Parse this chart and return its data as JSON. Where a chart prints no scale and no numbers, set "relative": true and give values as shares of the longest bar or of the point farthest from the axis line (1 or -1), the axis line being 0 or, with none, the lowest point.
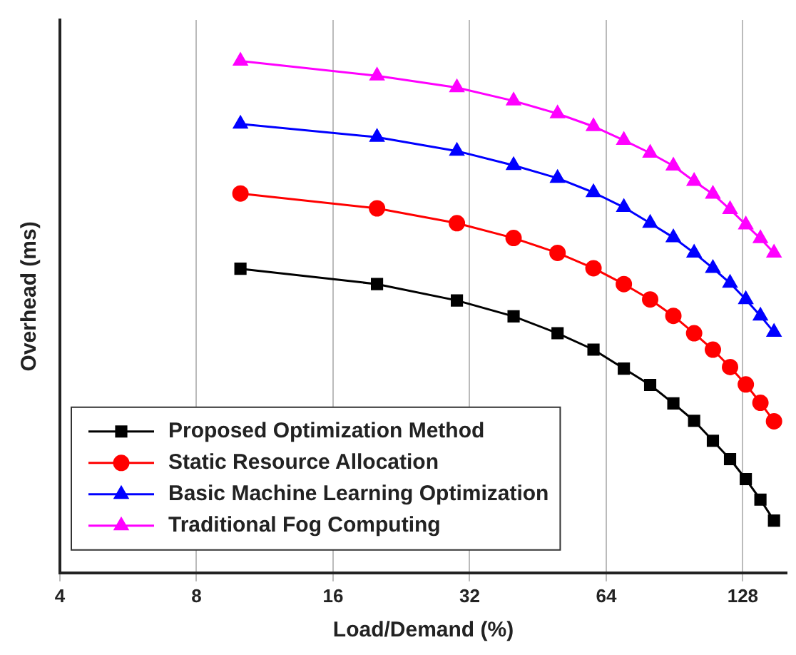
{
  "chart_data": {
    "type": "line",
    "xlabel": "Load/Demand (%)",
    "ylabel": "Overhead (ms)",
    "relative": true,
    "log": "x",
    "x": [
      10,
      20,
      30,
      40,
      50,
      60,
      70,
      80,
      90,
      100,
      110,
      120,
      130,
      140,
      150
    ],
    "xlim": [
      4,
      160
    ],
    "xticks": [
      4,
      8,
      16,
      32,
      64,
      128
    ],
    "series": [
      {
        "name": "Proposed Optimization Method",
        "color": "#000000",
        "marker": "square",
        "values": [
          0.594,
          0.564,
          0.532,
          0.501,
          0.468,
          0.436,
          0.399,
          0.367,
          0.331,
          0.297,
          0.258,
          0.222,
          0.183,
          0.143,
          0.102
        ]
      },
      {
        "name": "Static Resource Allocation",
        "color": "#ff0000",
        "marker": "circle",
        "values": [
          0.741,
          0.712,
          0.683,
          0.654,
          0.625,
          0.595,
          0.564,
          0.534,
          0.502,
          0.468,
          0.436,
          0.402,
          0.368,
          0.332,
          0.296
        ]
      },
      {
        "name": "Basic Machine Learning Optimization",
        "color": "#0000ff",
        "marker": "triangle",
        "values": [
          0.877,
          0.851,
          0.824,
          0.796,
          0.771,
          0.743,
          0.714,
          0.683,
          0.655,
          0.625,
          0.595,
          0.566,
          0.534,
          0.502,
          0.47
        ]
      },
      {
        "name": "Traditional Fog Computing",
        "color": "#ff00ff",
        "marker": "triangle",
        "values": [
          1,
          0.971,
          0.948,
          0.922,
          0.897,
          0.872,
          0.845,
          0.82,
          0.795,
          0.765,
          0.74,
          0.71,
          0.68,
          0.653,
          0.625
        ]
      }
    ],
    "grid": "x",
    "legend": "bottom left",
    "line_style": "solid"
  }
}
